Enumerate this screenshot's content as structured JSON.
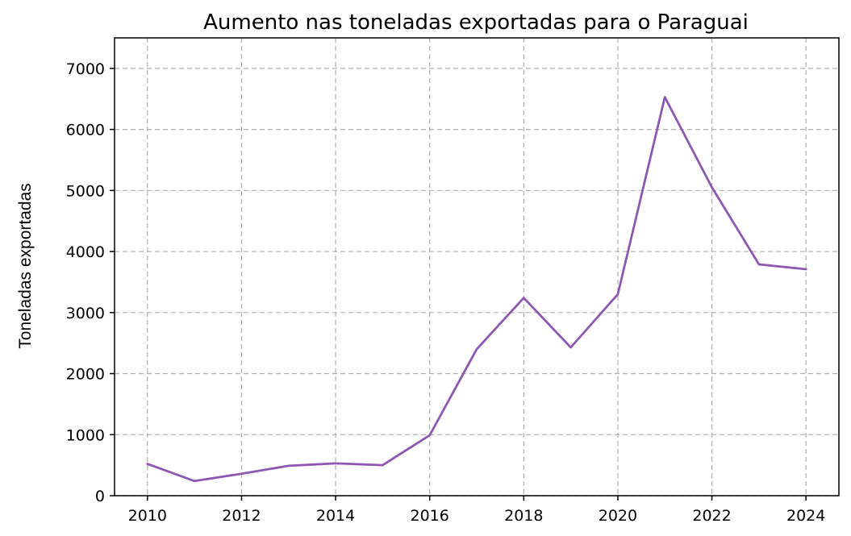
{
  "chart_data": {
    "type": "line",
    "title": "Aumento nas toneladas exportadas para o Paraguai",
    "xlabel": "",
    "ylabel": "Toneladas exportadas",
    "x": [
      2010,
      2011,
      2012,
      2013,
      2014,
      2015,
      2016,
      2017,
      2018,
      2019,
      2020,
      2021,
      2022,
      2023,
      2024
    ],
    "series": [
      {
        "values": [
          520,
          240,
          360,
          490,
          530,
          500,
          990,
          2400,
          3240,
          2430,
          3300,
          6530,
          5050,
          3790,
          3710
        ]
      }
    ],
    "xticks": [
      "2010",
      "2012",
      "2014",
      "2016",
      "2018",
      "2020",
      "2022",
      "2024"
    ],
    "yticks": [
      "0",
      "1000",
      "2000",
      "3000",
      "4000",
      "5000",
      "6000",
      "7000"
    ],
    "xlim": [
      2009.3,
      2024.7
    ],
    "ylim": [
      0,
      7500
    ],
    "grid": true,
    "line_color": "#8e57b3"
  }
}
